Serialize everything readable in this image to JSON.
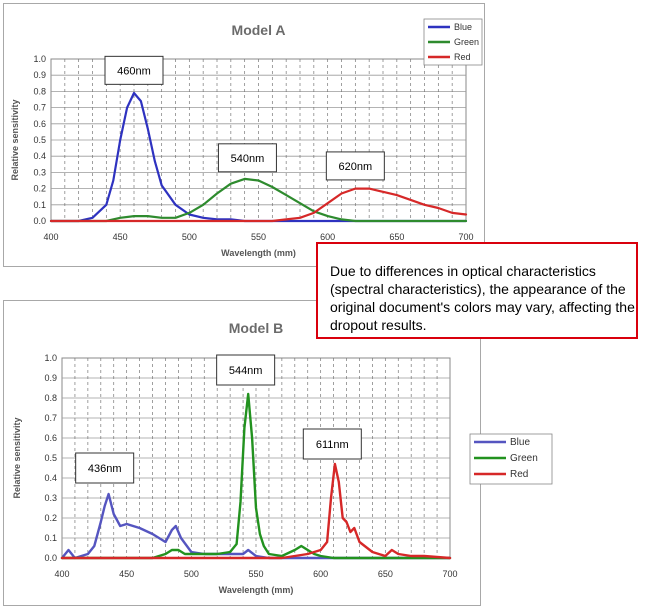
{
  "callout": {
    "text": "Due to differences in optical characteristics (spectral characteristics), the appearance of the original document's colors may vary, affecting the dropout results."
  },
  "chart_data": [
    {
      "type": "line",
      "title": "Model A",
      "xlabel": "Wavelength (mm)",
      "ylabel": "Relative sensitivity",
      "xlim": [
        400,
        700
      ],
      "ylim": [
        0,
        1.0
      ],
      "xticks": [
        "400",
        "450",
        "500",
        "550",
        "600",
        "650",
        "700"
      ],
      "yticks": [
        "0.0",
        "0.1",
        "0.2",
        "0.3",
        "0.4",
        "0.5",
        "0.6",
        "0.7",
        "0.8",
        "0.9",
        "1.0"
      ],
      "grid": true,
      "legend_position": "top-right",
      "annotations": [
        {
          "text": "460nm",
          "x": 460,
          "y": 0.93
        },
        {
          "text": "540nm",
          "x": 542,
          "y": 0.39
        },
        {
          "text": "620nm",
          "x": 620,
          "y": 0.34
        }
      ],
      "series": [
        {
          "name": "Blue",
          "color": "#2e32c0",
          "x": [
            400,
            420,
            430,
            440,
            445,
            450,
            455,
            460,
            465,
            470,
            475,
            480,
            490,
            500,
            510,
            520,
            530,
            540,
            560,
            600,
            700
          ],
          "y": [
            0.0,
            0.0,
            0.02,
            0.1,
            0.25,
            0.5,
            0.7,
            0.79,
            0.74,
            0.57,
            0.37,
            0.22,
            0.1,
            0.04,
            0.02,
            0.01,
            0.01,
            0.0,
            0.0,
            0.0,
            0.0
          ]
        },
        {
          "name": "Green",
          "color": "#2e8b2e",
          "x": [
            400,
            440,
            450,
            460,
            470,
            480,
            490,
            500,
            510,
            520,
            530,
            540,
            550,
            560,
            570,
            580,
            590,
            600,
            610,
            620,
            640,
            700
          ],
          "y": [
            0.0,
            0.0,
            0.02,
            0.03,
            0.03,
            0.02,
            0.02,
            0.05,
            0.1,
            0.17,
            0.23,
            0.26,
            0.25,
            0.21,
            0.16,
            0.11,
            0.06,
            0.03,
            0.01,
            0.0,
            0.0,
            0.0
          ]
        },
        {
          "name": "Red",
          "color": "#d62828",
          "x": [
            400,
            560,
            570,
            580,
            590,
            600,
            610,
            620,
            630,
            640,
            650,
            660,
            670,
            680,
            690,
            700
          ],
          "y": [
            0.0,
            0.0,
            0.01,
            0.02,
            0.05,
            0.11,
            0.17,
            0.2,
            0.2,
            0.18,
            0.16,
            0.13,
            0.1,
            0.08,
            0.05,
            0.04
          ]
        }
      ]
    },
    {
      "type": "line",
      "title": "Model B",
      "xlabel": "Wavelength (mm)",
      "ylabel": "Relative sensitivity",
      "xlim": [
        400,
        700
      ],
      "ylim": [
        0,
        1.0
      ],
      "xticks": [
        "400",
        "450",
        "500",
        "550",
        "600",
        "650",
        "700"
      ],
      "yticks": [
        "0.0",
        "0.1",
        "0.2",
        "0.3",
        "0.4",
        "0.5",
        "0.6",
        "0.7",
        "0.8",
        "0.9",
        "1.0"
      ],
      "grid": true,
      "legend_position": "right",
      "annotations": [
        {
          "text": "436nm",
          "x": 433,
          "y": 0.45
        },
        {
          "text": "544nm",
          "x": 542,
          "y": 0.94
        },
        {
          "text": "611nm",
          "x": 609,
          "y": 0.57
        }
      ],
      "series": [
        {
          "name": "Blue",
          "color": "#5555c0",
          "x": [
            400,
            405,
            410,
            420,
            425,
            430,
            433,
            436,
            440,
            445,
            450,
            460,
            470,
            480,
            485,
            488,
            492,
            500,
            510,
            520,
            530,
            540,
            544,
            550,
            560,
            700
          ],
          "y": [
            0.0,
            0.04,
            0.0,
            0.02,
            0.06,
            0.18,
            0.26,
            0.32,
            0.22,
            0.16,
            0.17,
            0.15,
            0.12,
            0.08,
            0.14,
            0.16,
            0.1,
            0.03,
            0.02,
            0.02,
            0.02,
            0.02,
            0.04,
            0.01,
            0.0,
            0.0
          ]
        },
        {
          "name": "Green",
          "color": "#22921f",
          "x": [
            400,
            470,
            480,
            485,
            490,
            495,
            500,
            510,
            520,
            530,
            535,
            538,
            541,
            544,
            547,
            550,
            553,
            556,
            560,
            570,
            580,
            585,
            590,
            595,
            600,
            610,
            700
          ],
          "y": [
            0.0,
            0.0,
            0.02,
            0.04,
            0.04,
            0.02,
            0.02,
            0.02,
            0.02,
            0.03,
            0.07,
            0.28,
            0.65,
            0.82,
            0.6,
            0.25,
            0.12,
            0.06,
            0.02,
            0.01,
            0.04,
            0.06,
            0.04,
            0.02,
            0.01,
            0.0,
            0.0
          ]
        },
        {
          "name": "Red",
          "color": "#d62828",
          "x": [
            400,
            570,
            580,
            590,
            595,
            600,
            605,
            608,
            611,
            614,
            617,
            620,
            623,
            626,
            630,
            640,
            650,
            655,
            660,
            670,
            680,
            700
          ],
          "y": [
            0.0,
            0.0,
            0.01,
            0.02,
            0.03,
            0.04,
            0.08,
            0.3,
            0.47,
            0.38,
            0.2,
            0.18,
            0.13,
            0.15,
            0.08,
            0.03,
            0.01,
            0.04,
            0.02,
            0.01,
            0.01,
            0.0
          ]
        }
      ]
    }
  ]
}
